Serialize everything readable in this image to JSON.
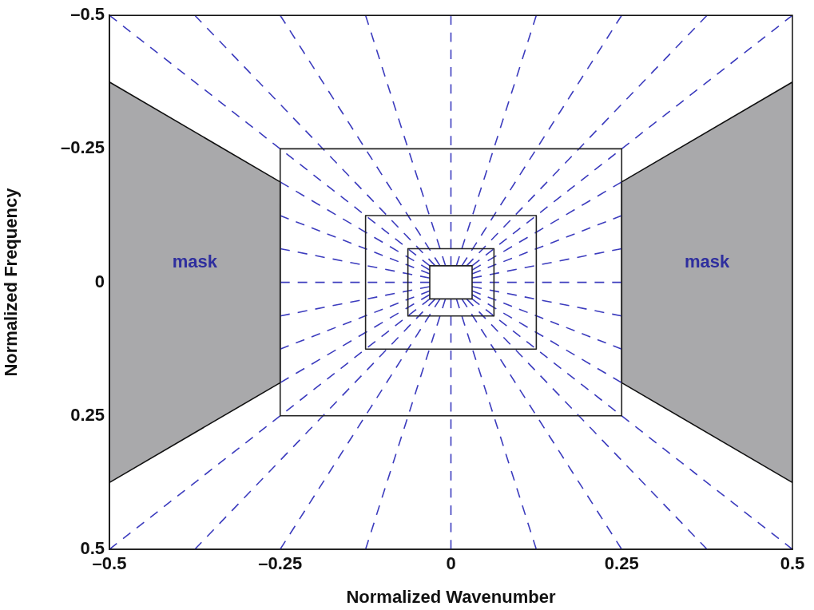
{
  "chart_data": {
    "type": "line",
    "xlabel": "Normalized Wavenumber",
    "ylabel": "Normalized Frequency",
    "xlim": [
      -0.5,
      0.5
    ],
    "ylim": [
      0.5,
      -0.5
    ],
    "xticks": [
      {
        "value": -0.5,
        "label": "–0.5"
      },
      {
        "value": -0.25,
        "label": "–0.25"
      },
      0,
      0.25,
      0.5
    ],
    "yticks": [
      {
        "value": -0.5,
        "label": "–0.5"
      },
      {
        "value": -0.25,
        "label": "–0.25"
      },
      0,
      0.25,
      0.5
    ],
    "grid": false,
    "legend": false,
    "marker": "none",
    "annotations": [
      "mask",
      "mask"
    ],
    "series": [
      {
        "type": "area",
        "color": "#a9a9ab",
        "x": [
          -0.5,
          -0.25,
          -0.25,
          -0.5,
          -0.5
        ],
        "values": [
          -0.375,
          -0.188,
          0.188,
          0.375,
          -0.375
        ]
      },
      {
        "type": "area",
        "color": "#a9a9ab",
        "x": [
          0.5,
          0.25,
          0.25,
          0.5,
          0.5
        ],
        "values": [
          -0.375,
          -0.188,
          0.188,
          0.375,
          -0.375
        ]
      },
      {
        "line_style": "dashed",
        "color": "#3c3cbe",
        "x": [
          -0.031,
          -0.5
        ],
        "values": [
          -0.031,
          -0.5
        ]
      },
      {
        "line_style": "dashed",
        "color": "#3c3cbe",
        "x": [
          -0.023,
          -0.375
        ],
        "values": [
          -0.031,
          -0.5
        ]
      },
      {
        "line_style": "dashed",
        "color": "#3c3cbe",
        "x": [
          -0.016,
          -0.25
        ],
        "values": [
          -0.031,
          -0.5
        ]
      },
      {
        "line_style": "dashed",
        "color": "#3c3cbe",
        "x": [
          -0.008,
          -0.125
        ],
        "values": [
          -0.031,
          -0.5
        ]
      },
      {
        "line_style": "dashed",
        "color": "#3c3cbe",
        "x": [
          0,
          0
        ],
        "values": [
          -0.031,
          -0.5
        ]
      },
      {
        "line_style": "dashed",
        "color": "#3c3cbe",
        "x": [
          0.008,
          0.125
        ],
        "values": [
          -0.031,
          -0.5
        ]
      },
      {
        "line_style": "dashed",
        "color": "#3c3cbe",
        "x": [
          0.016,
          0.25
        ],
        "values": [
          -0.031,
          -0.5
        ]
      },
      {
        "line_style": "dashed",
        "color": "#3c3cbe",
        "x": [
          0.023,
          0.375
        ],
        "values": [
          -0.031,
          -0.5
        ]
      },
      {
        "line_style": "dashed",
        "color": "#3c3cbe",
        "x": [
          0.031,
          0.5
        ],
        "values": [
          -0.031,
          -0.5
        ]
      },
      {
        "line_style": "dashed",
        "color": "#3c3cbe",
        "x": [
          -0.031,
          -0.5
        ],
        "values": [
          0.031,
          0.5
        ]
      },
      {
        "line_style": "dashed",
        "color": "#3c3cbe",
        "x": [
          -0.023,
          -0.375
        ],
        "values": [
          0.031,
          0.5
        ]
      },
      {
        "line_style": "dashed",
        "color": "#3c3cbe",
        "x": [
          -0.016,
          -0.25
        ],
        "values": [
          0.031,
          0.5
        ]
      },
      {
        "line_style": "dashed",
        "color": "#3c3cbe",
        "x": [
          -0.008,
          -0.125
        ],
        "values": [
          0.031,
          0.5
        ]
      },
      {
        "line_style": "dashed",
        "color": "#3c3cbe",
        "x": [
          0,
          0
        ],
        "values": [
          0.031,
          0.5
        ]
      },
      {
        "line_style": "dashed",
        "color": "#3c3cbe",
        "x": [
          0.008,
          0.125
        ],
        "values": [
          0.031,
          0.5
        ]
      },
      {
        "line_style": "dashed",
        "color": "#3c3cbe",
        "x": [
          0.016,
          0.25
        ],
        "values": [
          0.031,
          0.5
        ]
      },
      {
        "line_style": "dashed",
        "color": "#3c3cbe",
        "x": [
          0.023,
          0.375
        ],
        "values": [
          0.031,
          0.5
        ]
      },
      {
        "line_style": "dashed",
        "color": "#3c3cbe",
        "x": [
          0.031,
          0.5
        ],
        "values": [
          0.031,
          0.5
        ]
      },
      {
        "line_style": "dashed",
        "color": "#3c3cbe",
        "x": [
          -0.031,
          -0.25
        ],
        "values": [
          -0.023,
          -0.188
        ]
      },
      {
        "line_style": "dashed",
        "color": "#3c3cbe",
        "x": [
          -0.031,
          -0.25
        ],
        "values": [
          -0.016,
          -0.125
        ]
      },
      {
        "line_style": "dashed",
        "color": "#3c3cbe",
        "x": [
          -0.031,
          -0.25
        ],
        "values": [
          -0.008,
          -0.063
        ]
      },
      {
        "line_style": "dashed",
        "color": "#3c3cbe",
        "x": [
          -0.031,
          -0.25
        ],
        "values": [
          0,
          0
        ]
      },
      {
        "line_style": "dashed",
        "color": "#3c3cbe",
        "x": [
          -0.031,
          -0.25
        ],
        "values": [
          0.008,
          0.063
        ]
      },
      {
        "line_style": "dashed",
        "color": "#3c3cbe",
        "x": [
          -0.031,
          -0.25
        ],
        "values": [
          0.016,
          0.125
        ]
      },
      {
        "line_style": "dashed",
        "color": "#3c3cbe",
        "x": [
          -0.031,
          -0.25
        ],
        "values": [
          0.023,
          0.188
        ]
      },
      {
        "line_style": "dashed",
        "color": "#3c3cbe",
        "x": [
          0.031,
          0.25
        ],
        "values": [
          -0.023,
          -0.188
        ]
      },
      {
        "line_style": "dashed",
        "color": "#3c3cbe",
        "x": [
          0.031,
          0.25
        ],
        "values": [
          -0.016,
          -0.125
        ]
      },
      {
        "line_style": "dashed",
        "color": "#3c3cbe",
        "x": [
          0.031,
          0.25
        ],
        "values": [
          -0.008,
          -0.063
        ]
      },
      {
        "line_style": "dashed",
        "color": "#3c3cbe",
        "x": [
          0.031,
          0.25
        ],
        "values": [
          0,
          0
        ]
      },
      {
        "line_style": "dashed",
        "color": "#3c3cbe",
        "x": [
          0.031,
          0.25
        ],
        "values": [
          0.008,
          0.063
        ]
      },
      {
        "line_style": "dashed",
        "color": "#3c3cbe",
        "x": [
          0.031,
          0.25
        ],
        "values": [
          0.016,
          0.125
        ]
      },
      {
        "line_style": "dashed",
        "color": "#3c3cbe",
        "x": [
          0.031,
          0.25
        ],
        "values": [
          0.023,
          0.188
        ]
      },
      {
        "line_style": "solid",
        "color": "#222222",
        "x": [
          -0.25,
          0.25
        ],
        "values": [
          -0.25,
          -0.25
        ]
      },
      {
        "line_style": "solid",
        "color": "#222222",
        "x": [
          0.25,
          0.25
        ],
        "values": [
          -0.25,
          0.25
        ]
      },
      {
        "line_style": "solid",
        "color": "#222222",
        "x": [
          -0.25,
          0.25
        ],
        "values": [
          0.25,
          0.25
        ]
      },
      {
        "line_style": "solid",
        "color": "#222222",
        "x": [
          -0.25,
          -0.25
        ],
        "values": [
          -0.25,
          0.25
        ]
      },
      {
        "line_style": "solid",
        "color": "#222222",
        "x": [
          -0.125,
          0.125
        ],
        "values": [
          -0.125,
          -0.125
        ]
      },
      {
        "line_style": "solid",
        "color": "#222222",
        "x": [
          0.125,
          0.125
        ],
        "values": [
          -0.125,
          0.125
        ]
      },
      {
        "line_style": "solid",
        "color": "#222222",
        "x": [
          -0.125,
          0.125
        ],
        "values": [
          0.125,
          0.125
        ]
      },
      {
        "line_style": "solid",
        "color": "#222222",
        "x": [
          -0.125,
          -0.125
        ],
        "values": [
          -0.125,
          0.125
        ]
      },
      {
        "line_style": "solid",
        "color": "#222222",
        "x": [
          -0.063,
          0.063
        ],
        "values": [
          -0.063,
          -0.063
        ]
      },
      {
        "line_style": "solid",
        "color": "#222222",
        "x": [
          0.063,
          0.063
        ],
        "values": [
          -0.063,
          0.063
        ]
      },
      {
        "line_style": "solid",
        "color": "#222222",
        "x": [
          -0.063,
          0.063
        ],
        "values": [
          0.063,
          0.063
        ]
      },
      {
        "line_style": "solid",
        "color": "#222222",
        "x": [
          -0.063,
          -0.063
        ],
        "values": [
          -0.063,
          0.063
        ]
      },
      {
        "line_style": "solid",
        "color": "#222222",
        "x": [
          -0.031,
          0.031
        ],
        "values": [
          -0.031,
          -0.031
        ]
      },
      {
        "line_style": "solid",
        "color": "#222222",
        "x": [
          0.031,
          0.031
        ],
        "values": [
          -0.031,
          0.031
        ]
      },
      {
        "line_style": "solid",
        "color": "#222222",
        "x": [
          -0.031,
          0.031
        ],
        "values": [
          0.031,
          0.031
        ]
      },
      {
        "line_style": "solid",
        "color": "#222222",
        "x": [
          -0.031,
          -0.031
        ],
        "values": [
          -0.031,
          0.031
        ]
      }
    ]
  }
}
